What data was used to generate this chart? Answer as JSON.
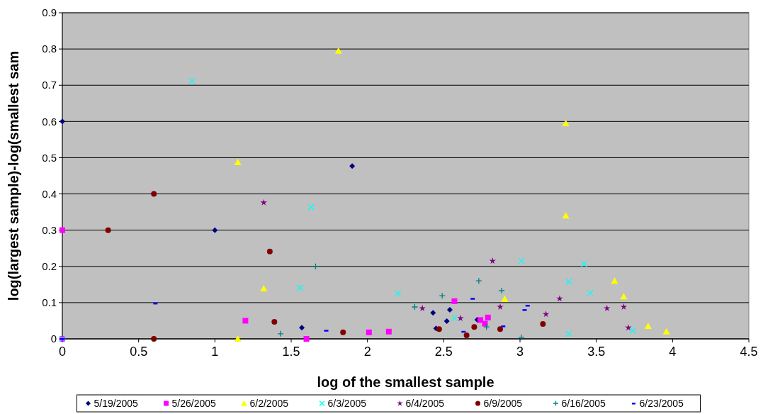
{
  "chart_data": {
    "type": "scatter",
    "xlabel": "log of the smallest sample",
    "ylabel": "log(largest sample)-log(smallest sam",
    "xlim": [
      0,
      4.5
    ],
    "ylim": [
      0,
      0.9
    ],
    "xticks": [
      0,
      0.5,
      1,
      1.5,
      2,
      2.5,
      3,
      3.5,
      4,
      4.5
    ],
    "yticks": [
      0,
      0.1,
      0.2,
      0.3,
      0.4,
      0.5,
      0.6,
      0.7,
      0.8,
      0.9
    ],
    "grid": "y",
    "legend": "bottom",
    "series": [
      {
        "name": "5/19/2005",
        "color": "#000080",
        "marker": "diamond",
        "x": [
          0,
          1,
          1.9,
          1.57,
          2.43,
          2.54,
          2.52,
          2.45,
          2.72
        ],
        "values": [
          0.6,
          0.3,
          0.477,
          0.031,
          0.072,
          0.08,
          0.049,
          0.029,
          0.053
        ]
      },
      {
        "name": "5/26/2005",
        "color": "#ff00ff",
        "marker": "square",
        "x": [
          0,
          0,
          1.2,
          1.6,
          2.01,
          2.14,
          2.57,
          2.74,
          2.77,
          2.79
        ],
        "values": [
          0.3,
          0,
          0.05,
          0,
          0.018,
          0.02,
          0.104,
          0.052,
          0.042,
          0.059
        ]
      },
      {
        "name": "6/2/2005",
        "color": "#ffff00",
        "marker": "triangle",
        "x": [
          1.15,
          1.15,
          1.32,
          1.81,
          2.9,
          3.3,
          3.3,
          3.62,
          3.68,
          3.84,
          3.96
        ],
        "values": [
          0,
          0.487,
          0.139,
          0.795,
          0.11,
          0.595,
          0.34,
          0.16,
          0.117,
          0.035,
          0.02
        ]
      },
      {
        "name": "6/3/2005",
        "color": "#00ffff",
        "marker": "cross",
        "x": [
          0,
          0.85,
          1.63,
          1.56,
          2.2,
          2.57,
          3.01,
          3.32,
          3.42,
          3.46,
          3.32,
          3.74
        ],
        "values": [
          0,
          0.712,
          0.364,
          0.141,
          0.125,
          0.057,
          0.215,
          0.158,
          0.207,
          0.127,
          0.014,
          0.023
        ]
      },
      {
        "name": "6/4/2005",
        "color": "#800080",
        "marker": "star",
        "x": [
          1.32,
          2.36,
          2.61,
          2.82,
          2.87,
          3.17,
          3.26,
          3.57,
          3.68,
          3.71
        ],
        "values": [
          0.376,
          0.084,
          0.057,
          0.215,
          0.088,
          0.068,
          0.111,
          0.084,
          0.088,
          0.031
        ]
      },
      {
        "name": "6/9/2005",
        "color": "#800000",
        "marker": "circle",
        "x": [
          0.3,
          0.6,
          0.6,
          1.36,
          1.39,
          1.84,
          2.47,
          2.65,
          2.7,
          2.87,
          3.15
        ],
        "values": [
          0.3,
          0.4,
          0,
          0.241,
          0.047,
          0.018,
          0.027,
          0.01,
          0.033,
          0.027,
          0.041
        ]
      },
      {
        "name": "6/16/2005",
        "color": "#008080",
        "marker": "plus",
        "x": [
          1.66,
          1.43,
          2.31,
          2.49,
          2.73,
          2.88,
          2.78,
          3.01
        ],
        "values": [
          0.2,
          0.014,
          0.088,
          0.119,
          0.16,
          0.133,
          0.033,
          0.004
        ]
      },
      {
        "name": "6/23/2005",
        "color": "#0000ff",
        "x": [
          0,
          0.61,
          1.73,
          2.69,
          2.63,
          2.89,
          3.03,
          3.05
        ],
        "values": [
          0,
          0.098,
          0.023,
          0.111,
          0.02,
          0.035,
          0.08,
          0.092
        ]
      }
    ]
  }
}
